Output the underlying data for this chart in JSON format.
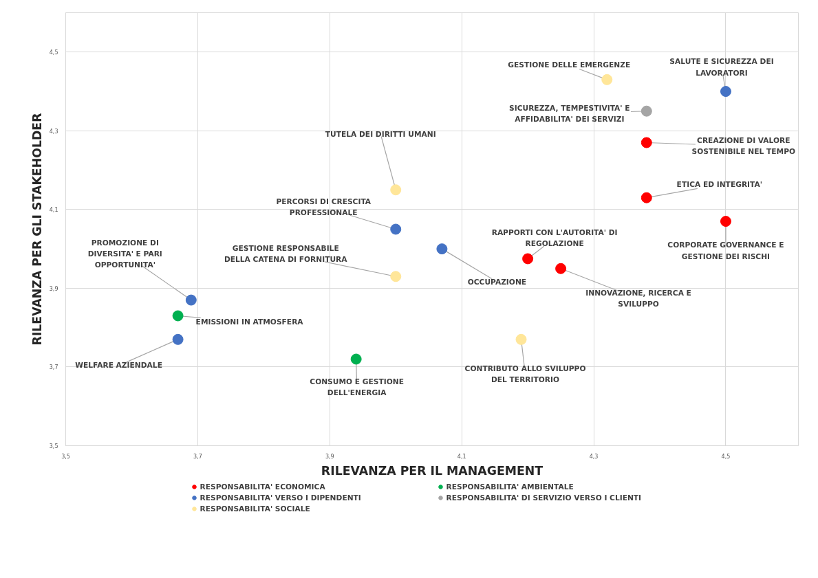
{
  "chart_data": {
    "type": "scatter",
    "xlabel": "RILEVANZA PER IL MANAGEMENT",
    "ylabel": "RILEVANZA PER GLI STAKEHOLDER",
    "xlim": [
      3.5,
      4.61
    ],
    "ylim": [
      3.5,
      4.6
    ],
    "xticks": [
      {
        "value": 3.5,
        "label": "3,5"
      },
      {
        "value": 3.7,
        "label": "3,7"
      },
      {
        "value": 3.9,
        "label": "3,9"
      },
      {
        "value": 4.1,
        "label": "4,1"
      },
      {
        "value": 4.3,
        "label": "4,3"
      },
      {
        "value": 4.5,
        "label": "4,5"
      }
    ],
    "yticks": [
      {
        "value": 3.5,
        "label": "3,5"
      },
      {
        "value": 3.7,
        "label": "3,7"
      },
      {
        "value": 3.9,
        "label": "3,9"
      },
      {
        "value": 4.1,
        "label": "4,1"
      },
      {
        "value": 4.3,
        "label": "4,3"
      },
      {
        "value": 4.5,
        "label": "4,5"
      }
    ],
    "grid": true,
    "legend": "bottom",
    "marker": "circle",
    "series": [
      {
        "name": "RESPONSABILITA' ECONOMICA",
        "color": "#ff0000",
        "x": [
          4.38,
          4.38,
          4.5,
          4.2,
          4.25
        ],
        "values": [
          4.27,
          4.13,
          4.07,
          3.975,
          3.95
        ]
      },
      {
        "name": "RESPONSABILITA' AMBIENTALE",
        "color": "#00b050",
        "x": [
          3.67,
          3.94
        ],
        "values": [
          3.83,
          3.72
        ]
      },
      {
        "name": "RESPONSABILITA' VERSO I DIPENDENTI",
        "color": "#4472c4",
        "x": [
          4.5,
          4.0,
          4.07,
          3.69,
          3.67
        ],
        "values": [
          4.4,
          4.05,
          4.0,
          3.87,
          3.77
        ]
      },
      {
        "name": "RESPONSABILITA' DI SERVIZIO VERSO I CLIENTI",
        "color": "#a5a5a5",
        "x": [
          4.38
        ],
        "values": [
          4.35
        ]
      },
      {
        "name": "RESPONSABILITA' SOCIALE",
        "color": "#ffe699",
        "x": [
          4.32,
          4.0,
          4.0,
          4.19
        ],
        "values": [
          4.43,
          4.15,
          3.93,
          3.77
        ]
      }
    ],
    "annotations": [
      {
        "text": "GESTIONE DELLE EMERGENZE",
        "x": 4.32,
        "y": 4.43
      },
      {
        "text": "SALUTE E SICUREZZA DEI\nLAVORATORI",
        "x": 4.5,
        "y": 4.4
      },
      {
        "text": "SICUREZZA, TEMPESTIVITA' E\nAFFIDABILITA' DEI SERVIZI",
        "x": 4.38,
        "y": 4.35
      },
      {
        "text": "CREAZIONE DI VALORE\nSOSTENIBILE NEL TEMPO",
        "x": 4.38,
        "y": 4.27
      },
      {
        "text": "TUTELA DEI DIRITTI UMANI",
        "x": 4.0,
        "y": 4.15
      },
      {
        "text": "ETICA ED INTEGRITA'",
        "x": 4.38,
        "y": 4.13
      },
      {
        "text": "CORPORATE GOVERNANCE E\nGESTIONE DEI RISCHI",
        "x": 4.5,
        "y": 4.07
      },
      {
        "text": "PERCORSI DI CRESCITA\nPROFESSIONALE",
        "x": 4.0,
        "y": 4.05
      },
      {
        "text": "OCCUPAZIONE",
        "x": 4.07,
        "y": 4.0
      },
      {
        "text": "RAPPORTI CON L'AUTORITA' DI\nREGOLAZIONE",
        "x": 4.2,
        "y": 3.975
      },
      {
        "text": "INNOVAZIONE, RICERCA E\nSVILUPPO",
        "x": 4.25,
        "y": 3.95
      },
      {
        "text": "GESTIONE RESPONSABILE\nDELLA CATENA DI FORNITURA",
        "x": 4.0,
        "y": 3.93
      },
      {
        "text": "PROMOZIONE DI\nDIVERSITA' E PARI\nOPPORTUNITA'",
        "x": 3.69,
        "y": 3.87
      },
      {
        "text": "EMISSIONI IN ATMOSFERA",
        "x": 3.67,
        "y": 3.83
      },
      {
        "text": "WELFARE AZIENDALE",
        "x": 3.67,
        "y": 3.77
      },
      {
        "text": "CONTRIBUTO ALLO SVILUPPO\nDEL TERRITORIO",
        "x": 4.19,
        "y": 3.77
      },
      {
        "text": "CONSUMO E GESTIONE\nDELL'ENERGIA",
        "x": 3.94,
        "y": 3.72
      }
    ]
  }
}
